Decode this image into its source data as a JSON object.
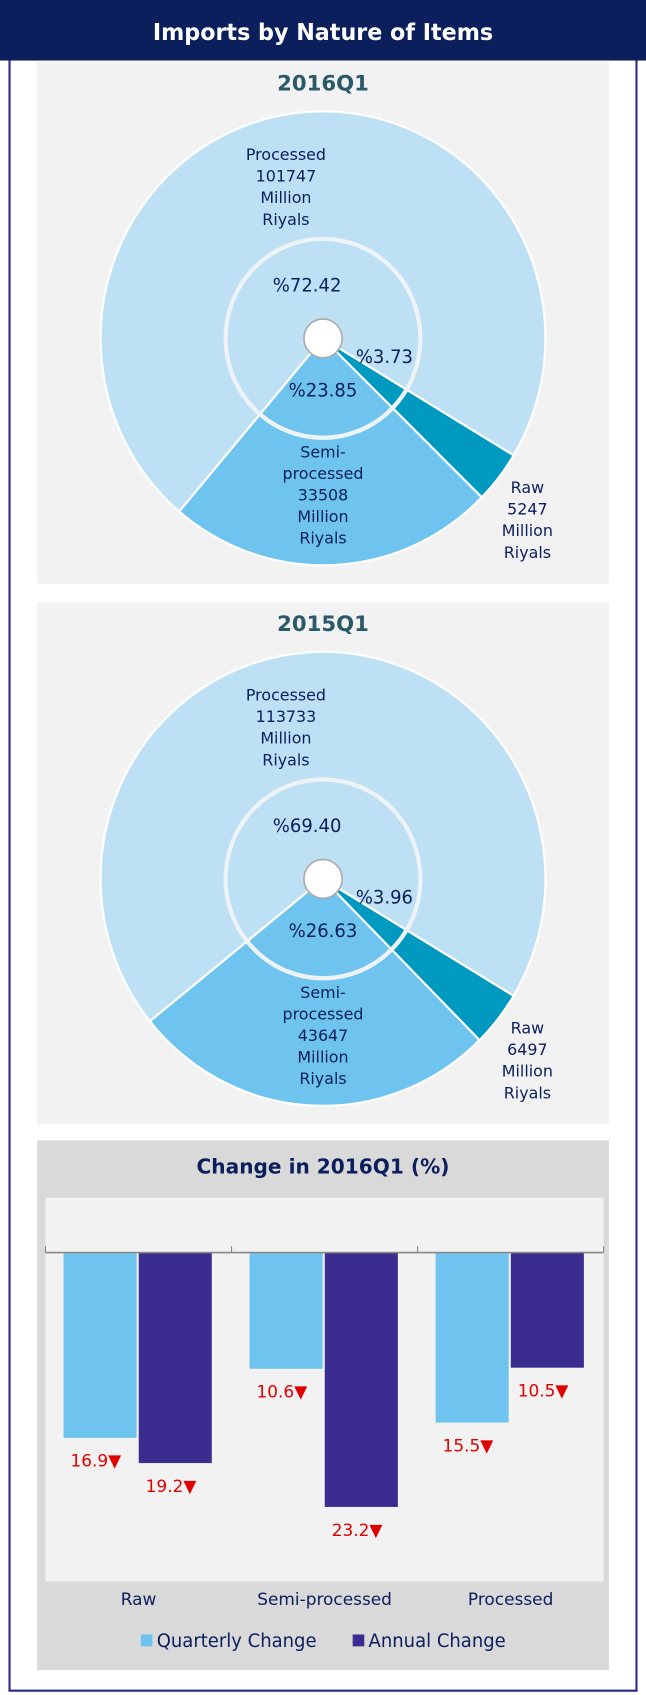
{
  "title": "Imports by Nature of Items",
  "chart_data": [
    {
      "type": "pie",
      "title": "2016Q1",
      "unit": "Million Riyals",
      "categories": [
        "Processed",
        "Semi-processed",
        "Raw"
      ],
      "values": [
        101747,
        33508,
        5247
      ],
      "percentages": [
        72.42,
        23.85,
        3.73
      ],
      "percent_labels": [
        "%72.42",
        "%23.85",
        "%3.73"
      ],
      "colors": [
        "#bde0f5",
        "#6ec4ee",
        "#0099c0"
      ]
    },
    {
      "type": "pie",
      "title": "2015Q1",
      "unit": "Million Riyals",
      "categories": [
        "Processed",
        "Semi-processed",
        "Raw"
      ],
      "values": [
        113733,
        43647,
        6497
      ],
      "percentages": [
        69.4,
        26.63,
        3.96
      ],
      "percent_labels": [
        "%69.40",
        "%26.63",
        "%3.96"
      ],
      "colors": [
        "#bde0f5",
        "#6ec4ee",
        "#0099c0"
      ]
    },
    {
      "type": "bar",
      "title": "Change in 2016Q1 (%)",
      "categories": [
        "Raw",
        "Semi-processed",
        "Processed"
      ],
      "series": [
        {
          "name": "Quarterly Change",
          "color": "#6ec4ee",
          "values": [
            -16.9,
            -10.6,
            -15.5
          ],
          "value_labels": [
            "16.9▼",
            "10.6▼",
            "15.5▼"
          ]
        },
        {
          "name": "Annual Change",
          "color": "#3a2d8f",
          "values": [
            -19.2,
            -23.2,
            -10.5
          ],
          "value_labels": [
            "19.2▼",
            "23.2▼",
            "10.5▼"
          ]
        }
      ],
      "ylim": [
        -30,
        5
      ],
      "label_color": "#e00000",
      "legend": "bottom"
    }
  ]
}
